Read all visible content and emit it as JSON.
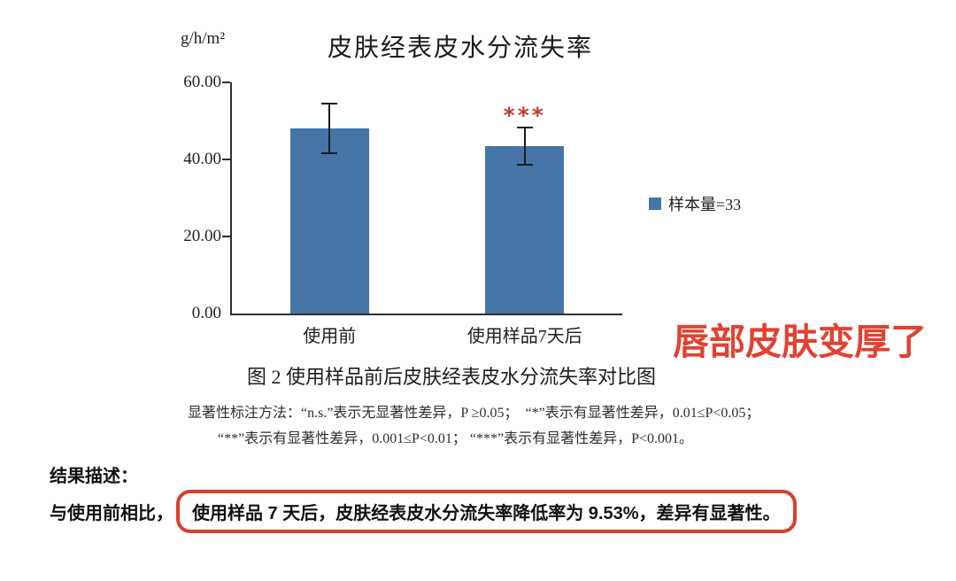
{
  "chart": {
    "unit_label": "g/h/m²",
    "title": "皮肤经表皮水分流失率",
    "legend_label": "样本量=33",
    "significance_marker": "***",
    "colors": {
      "bar": "#4575a7",
      "axis": "#2f2f2f",
      "error_bar": "#1a1a1a",
      "marker": "#c13a2e"
    }
  },
  "chart_data": {
    "type": "bar",
    "title": "皮肤经表皮水分流失率",
    "ylabel": "g/h/m²",
    "categories": [
      "使用前",
      "使用样品7天后"
    ],
    "values": [
      48.0,
      43.4
    ],
    "error_bars_low_high": [
      [
        41.3,
        54.8
      ],
      [
        38.3,
        48.5
      ]
    ],
    "ylim": [
      0,
      60
    ],
    "y_ticks": [
      60,
      40,
      20,
      0
    ],
    "grid": false,
    "legend_position": "right",
    "legend": [
      {
        "label": "样本量=33",
        "color": "#4575a7"
      }
    ],
    "annotations": [
      {
        "text": "***",
        "category": "使用样品7天后",
        "color": "#c13a2e"
      }
    ]
  },
  "caption": {
    "text": "图 2 使用样品前后皮肤经表皮水分流失率对比图"
  },
  "notes": {
    "line1": "显著性标注方法：“n.s.”表示无显著性差异，P ≥0.05；  “*”表示有显著性差异，0.01≤P<0.05；",
    "line2": "“**”表示有显著性差异，0.001≤P<0.01； “***”表示有显著性差异，P<0.001。"
  },
  "annotation": {
    "text": "唇部皮肤变厚了",
    "color": "#e04231"
  },
  "results": {
    "heading": "结果描述：",
    "prefix": "与使用前相比，",
    "highlight": "使用样品 7 天后，皮肤经表皮水分流失率降低率为 9.53%，差异有显著性。",
    "box_color": "#d6402f"
  }
}
